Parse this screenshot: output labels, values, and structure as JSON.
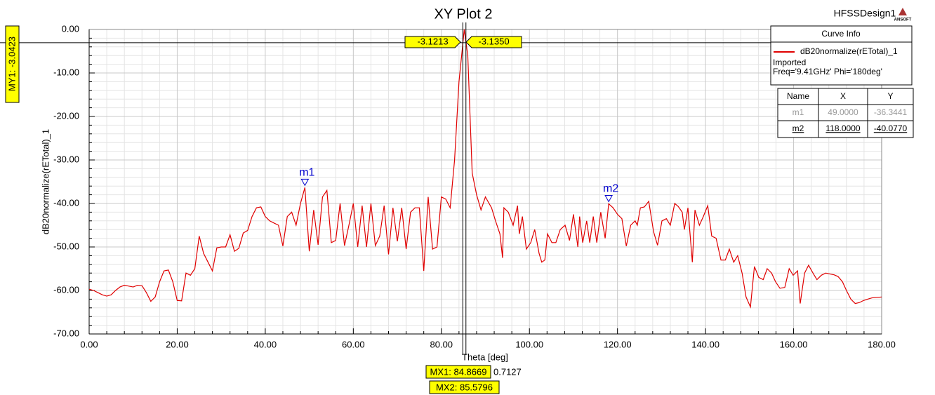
{
  "chart_data": {
    "type": "line",
    "title": "XY Plot 2",
    "design": "HFSSDesign1",
    "logo": "ANSOFT",
    "x_label": "Theta [deg]",
    "y_label": "dB20normalize(rETotal)_1",
    "xlim": [
      0,
      180
    ],
    "ylim": [
      -70,
      0
    ],
    "xticks": [
      {
        "value": 0,
        "label": "0.00"
      },
      {
        "value": 20,
        "label": "20.00"
      },
      {
        "value": 40,
        "label": "40.00"
      },
      {
        "value": 60,
        "label": "60.00"
      },
      {
        "value": 80,
        "label": "80.00"
      },
      {
        "value": 100,
        "label": "100.00"
      },
      {
        "value": 120,
        "label": "120.00"
      },
      {
        "value": 140,
        "label": "140.00"
      },
      {
        "value": 160,
        "label": "160.00"
      },
      {
        "value": 180,
        "label": "180.00"
      }
    ],
    "yticks": [
      {
        "value": -70,
        "label": "-70.00"
      },
      {
        "value": -60,
        "label": "-60.00"
      },
      {
        "value": -50,
        "label": "-50.00"
      },
      {
        "value": -40,
        "label": "-40.00"
      },
      {
        "value": -30,
        "label": "-30.00"
      },
      {
        "value": -20,
        "label": "-20.00"
      },
      {
        "value": -10,
        "label": "-10.00"
      },
      {
        "value": 0,
        "label": "0.00"
      }
    ],
    "grid": true,
    "minor_divisions": 5,
    "legend": {
      "title": "Curve Info",
      "lines": [
        "Imported",
        "Freq='9.41GHz' Phi='180deg'"
      ]
    },
    "x": [
      0,
      1,
      2,
      3,
      4,
      5,
      6,
      7,
      8,
      9,
      10,
      11,
      12,
      13,
      14,
      15,
      16,
      17,
      18,
      19,
      20,
      21,
      22,
      23,
      24,
      25,
      26,
      27,
      28,
      29,
      30,
      31,
      32,
      33,
      34,
      35,
      36,
      37,
      38,
      39,
      40,
      41,
      42,
      43,
      44,
      45,
      46,
      47,
      48,
      49,
      50,
      51,
      52,
      53,
      54,
      55,
      56,
      57,
      58,
      59,
      60,
      61,
      62,
      63,
      64,
      65,
      66,
      67,
      68,
      69,
      70,
      71,
      72,
      73,
      74,
      75,
      76,
      77,
      78,
      79,
      80,
      81,
      82,
      83,
      84,
      85.2,
      86,
      87,
      88,
      89,
      90,
      91.4,
      92.3,
      93.3,
      93.9,
      94.2,
      95.2,
      96.3,
      97.3,
      97.7,
      98.4,
      99.3,
      100.3,
      101.2,
      102.2,
      102.8,
      103.5,
      104.1,
      105.1,
      106,
      107,
      108.1,
      109.1,
      110,
      111,
      111.4,
      112.1,
      113,
      113.7,
      114.5,
      115.3,
      116.2,
      117.2,
      118,
      119,
      120,
      121,
      122,
      123,
      124,
      124.5,
      125.2,
      126.1,
      127.1,
      128.2,
      129.1,
      130.1,
      131.1,
      132,
      133,
      133.8,
      134.7,
      135.2,
      136,
      137,
      137.6,
      138.6,
      139.5,
      140.5,
      141.4,
      142.4,
      143.5,
      144.5,
      145.4,
      146.4,
      147.3,
      148.3,
      149.2,
      150.2,
      151.1,
      152.1,
      153.1,
      154,
      155,
      155.9,
      156.9,
      158,
      159,
      159.9,
      160.9,
      161.5,
      162.5,
      163.4,
      164.4,
      165.3,
      166.3,
      167.3,
      168.2,
      169.2,
      170.1,
      171.1,
      172,
      173,
      174,
      174.9,
      175.9,
      176.8,
      177.8,
      180
    ],
    "series": [
      {
        "name": "dB20normalize(rETotal)_1",
        "color": "#e00000",
        "values": [
          -59.7,
          -60,
          -60.5,
          -61,
          -61.3,
          -61,
          -60,
          -59.2,
          -58.8,
          -59,
          -59.2,
          -58.8,
          -58.9,
          -60.5,
          -62.5,
          -61.5,
          -58,
          -55.5,
          -55.3,
          -58,
          -62.3,
          -62.4,
          -56,
          -56.5,
          -55,
          -47.5,
          -51.5,
          -53.5,
          -55.5,
          -50.2,
          -50,
          -50,
          -47.2,
          -51,
          -50.3,
          -46.8,
          -46.2,
          -43,
          -41,
          -40.8,
          -43,
          -44,
          -44.5,
          -45,
          -49.8,
          -43,
          -42,
          -45,
          -40,
          -36.3441,
          -51,
          -41.5,
          -49.5,
          -38.5,
          -37,
          -49,
          -48.5,
          -40,
          -49.7,
          -45,
          -40,
          -50,
          -40.5,
          -50,
          -40,
          -49.7,
          -47.5,
          -40.5,
          -51.7,
          -41,
          -48.7,
          -41,
          -50.5,
          -42,
          -41,
          -41,
          -55.5,
          -38.5,
          -50.5,
          -50,
          -38.5,
          -39,
          -41,
          -30,
          -12,
          0,
          -6,
          -33,
          -38,
          -41.5,
          -38.5,
          -41,
          -44,
          -47,
          -52.5,
          -41,
          -42,
          -45,
          -40.5,
          -47,
          -43,
          -50.5,
          -49,
          -46,
          -51.5,
          -53.5,
          -53,
          -47,
          -49,
          -49,
          -46,
          -45,
          -48.5,
          -42.5,
          -50,
          -43,
          -49,
          -44,
          -49,
          -43,
          -49,
          -42,
          -48,
          -40.077,
          -41,
          -42.5,
          -43.5,
          -49.8,
          -45,
          -44,
          -45,
          -41,
          -40.8,
          -39.5,
          -46.5,
          -49.6,
          -44,
          -43.5,
          -45,
          -40,
          -40.7,
          -42,
          -46,
          -41,
          -53.5,
          -41.5,
          -45,
          -43,
          -40.5,
          -47.5,
          -48,
          -53,
          -53,
          -50.5,
          -53.5,
          -52,
          -56,
          -61.5,
          -63.8,
          -54.5,
          -57,
          -57.5,
          -55,
          -56,
          -58,
          -59.5,
          -59.3,
          -55,
          -56.5,
          -55.5,
          -63,
          -56,
          -54.2,
          -56,
          -57.5,
          -56.5,
          -56,
          -56.2,
          -56.4,
          -56.8,
          -58,
          -60,
          -62,
          -63,
          -62.8,
          -62.3,
          -62,
          -61.7,
          -61.5
        ]
      }
    ],
    "markers": [
      {
        "name": "m1",
        "x": {
          "value": 49,
          "label": "49.0000"
        },
        "y": -36.3441
      },
      {
        "name": "m2",
        "x": {
          "value": 118,
          "label": "118.0000"
        },
        "y": -40.077
      }
    ],
    "marker_table_header": [
      "Name",
      "X",
      "Y"
    ],
    "marker_table_y_labels": [
      "-36.3441",
      "-40.0770"
    ],
    "x_cursors": [
      {
        "value": 84.8669,
        "label": "MX1: 84.8669"
      },
      {
        "value": 85.5796,
        "label": "MX2: 85.5796"
      }
    ],
    "x_cursor_delta": 0.7127,
    "y_cursor": {
      "value": -3.0423,
      "label": "MY1: -3.0423"
    },
    "y_cursor_readouts": [
      -3.1213,
      {
        "value": -3.135,
        "label": "-3.1350"
      }
    ]
  }
}
